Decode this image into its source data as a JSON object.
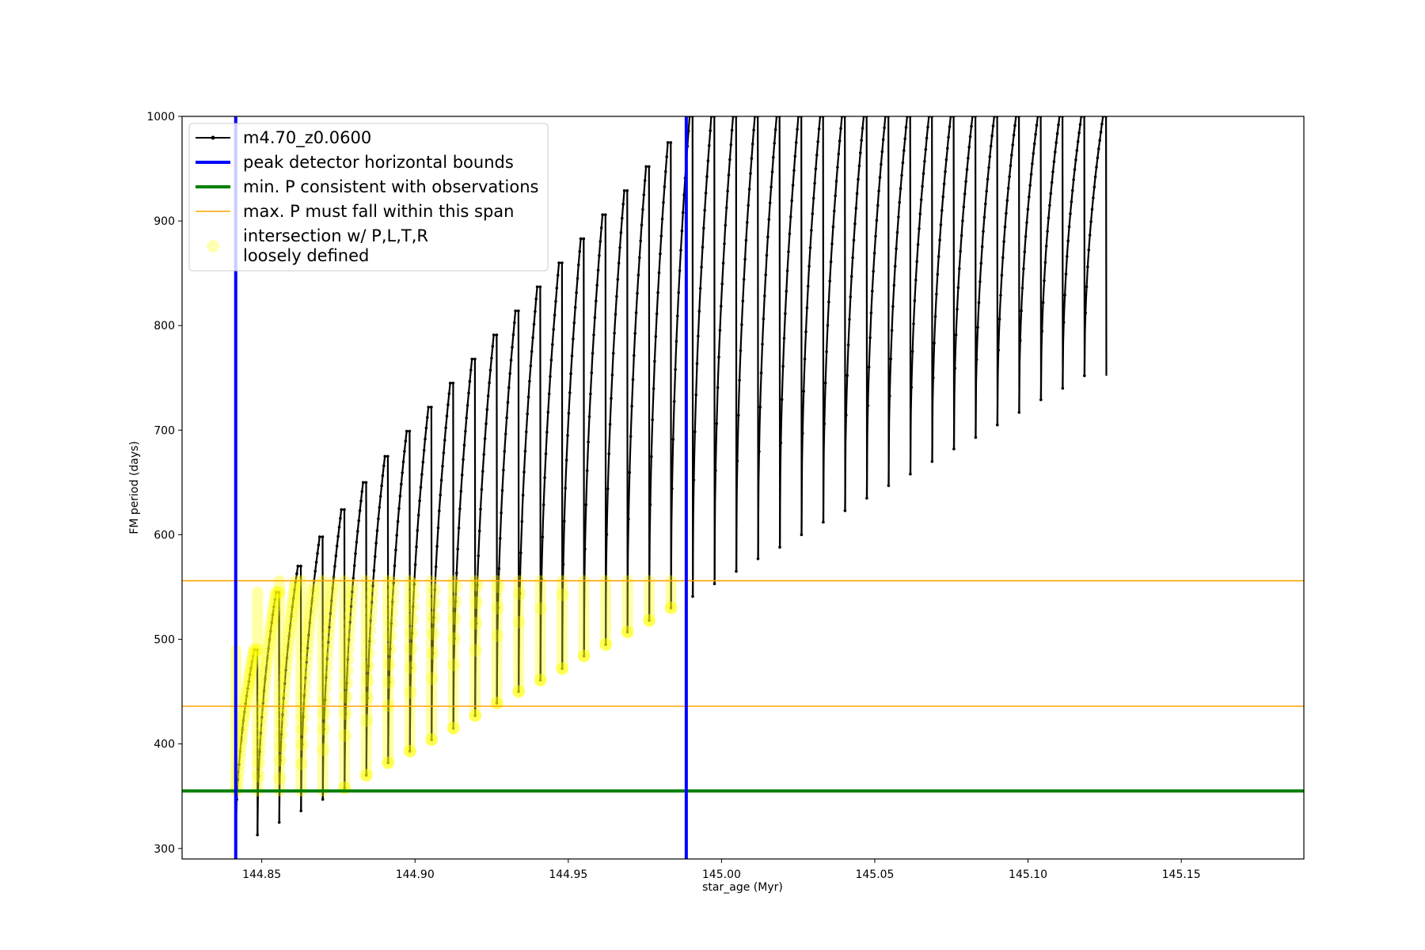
{
  "chart_data": {
    "type": "line",
    "xlabel": "star_age (Myr)",
    "ylabel": "FM period (days)",
    "xlim": [
      144.824,
      145.19
    ],
    "ylim": [
      290,
      1000
    ],
    "xticks": [
      144.85,
      144.9,
      144.95,
      145.0,
      145.05,
      145.1,
      145.15
    ],
    "xtick_labels": [
      "144.85",
      "144.90",
      "144.95",
      "145.00",
      "145.05",
      "145.10",
      "145.15"
    ],
    "yticks": [
      300,
      400,
      500,
      600,
      700,
      800,
      900,
      1000
    ],
    "ytick_labels": [
      "300",
      "400",
      "500",
      "600",
      "700",
      "800",
      "900",
      "1000"
    ],
    "grid": false,
    "legend_position": "top-left",
    "legend": [
      {
        "label": "m4.70_z0.0600",
        "style": "line-marker",
        "color": "#000000"
      },
      {
        "label": "peak detector horizontal bounds",
        "style": "line",
        "color": "#0000ff"
      },
      {
        "label": "min. P consistent with observations",
        "style": "line",
        "color": "#008000"
      },
      {
        "label": "max. P must fall within this span",
        "style": "thin-line",
        "color": "#ffa500"
      },
      {
        "label": "intersection w/ P,L,T,R",
        "label2": "loosely defined",
        "style": "marker",
        "color": "#ffff00"
      }
    ],
    "vertical_lines": {
      "name": "peak detector horizontal bounds",
      "color": "#0000ff",
      "x": [
        144.8415,
        144.9885
      ]
    },
    "min_period_line": {
      "name": "min. P consistent with observations",
      "color": "#008000",
      "y": 355
    },
    "max_period_span": {
      "name": "max. P must fall within this span",
      "color": "#ffa500",
      "y": [
        436,
        556
      ]
    },
    "series": {
      "name": "m4.70_z0.0600",
      "color": "#000000",
      "pulse_interval_myr": 0.00715,
      "pulses": [
        {
          "x_start": 144.8415,
          "min": 301,
          "peak": 490
        },
        {
          "x_start": 144.8486,
          "min": 313,
          "peak": 545
        },
        {
          "x_start": 144.8557,
          "min": 325,
          "peak": 570
        },
        {
          "x_start": 144.8628,
          "min": 336,
          "peak": 598
        },
        {
          "x_start": 144.8699,
          "min": 347,
          "peak": 624
        },
        {
          "x_start": 144.877,
          "min": 358,
          "peak": 650
        },
        {
          "x_start": 144.8841,
          "min": 370,
          "peak": 675
        },
        {
          "x_start": 144.8912,
          "min": 382,
          "peak": 699
        },
        {
          "x_start": 144.8983,
          "min": 393,
          "peak": 722
        },
        {
          "x_start": 144.9054,
          "min": 404,
          "peak": 745
        },
        {
          "x_start": 144.9125,
          "min": 415,
          "peak": 768
        },
        {
          "x_start": 144.9196,
          "min": 427,
          "peak": 791
        },
        {
          "x_start": 144.9267,
          "min": 439,
          "peak": 814
        },
        {
          "x_start": 144.9338,
          "min": 450,
          "peak": 837
        },
        {
          "x_start": 144.9409,
          "min": 461,
          "peak": 860
        },
        {
          "x_start": 144.948,
          "min": 472,
          "peak": 883
        },
        {
          "x_start": 144.9551,
          "min": 484,
          "peak": 906
        },
        {
          "x_start": 144.9622,
          "min": 495,
          "peak": 929
        },
        {
          "x_start": 144.9693,
          "min": 507,
          "peak": 952
        },
        {
          "x_start": 144.9764,
          "min": 518,
          "peak": 975
        },
        {
          "x_start": 144.9835,
          "min": 530,
          "peak": 1000
        },
        {
          "x_start": 144.9906,
          "min": 541,
          "peak": 1000
        },
        {
          "x_start": 144.9977,
          "min": 553,
          "peak": 1000
        },
        {
          "x_start": 145.0048,
          "min": 565,
          "peak": 1000
        },
        {
          "x_start": 145.0119,
          "min": 577,
          "peak": 1000
        },
        {
          "x_start": 145.019,
          "min": 588,
          "peak": 1000
        },
        {
          "x_start": 145.0261,
          "min": 600,
          "peak": 1000
        },
        {
          "x_start": 145.0332,
          "min": 612,
          "peak": 1000
        },
        {
          "x_start": 145.0403,
          "min": 623,
          "peak": 1000
        },
        {
          "x_start": 145.0474,
          "min": 635,
          "peak": 1000
        },
        {
          "x_start": 145.0545,
          "min": 647,
          "peak": 1000
        },
        {
          "x_start": 145.0616,
          "min": 658,
          "peak": 1000
        },
        {
          "x_start": 145.0687,
          "min": 670,
          "peak": 1000
        },
        {
          "x_start": 145.0758,
          "min": 682,
          "peak": 1000
        },
        {
          "x_start": 145.0829,
          "min": 693,
          "peak": 1000
        },
        {
          "x_start": 145.09,
          "min": 705,
          "peak": 1000
        },
        {
          "x_start": 145.0971,
          "min": 717,
          "peak": 1000
        },
        {
          "x_start": 145.1042,
          "min": 729,
          "peak": 1000
        },
        {
          "x_start": 145.1113,
          "min": 740,
          "peak": 1000
        },
        {
          "x_start": 145.1184,
          "min": 752,
          "peak": 1000
        }
      ]
    },
    "highlight": {
      "name": "intersection w/ P,L,T,R loosely defined",
      "color": "#ffff00",
      "x_range": [
        144.8415,
        144.9885
      ],
      "y_range": [
        355,
        556
      ]
    }
  }
}
